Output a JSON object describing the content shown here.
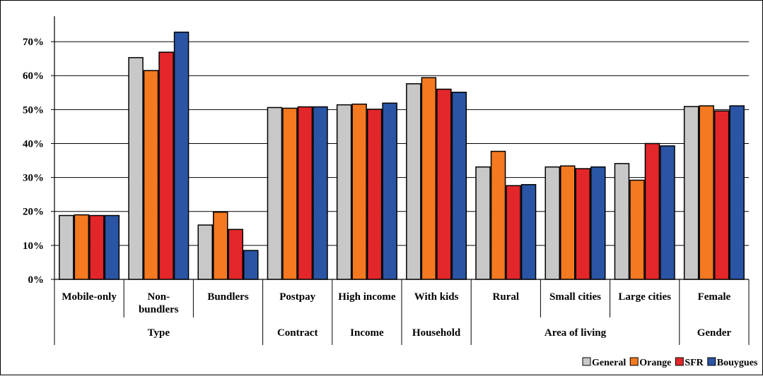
{
  "chart_data": {
    "type": "bar",
    "title": "",
    "xlabel": "",
    "ylabel": "",
    "ylim": [
      0,
      0.75
    ],
    "y_ticks": [
      0,
      0.1,
      0.2,
      0.3,
      0.4,
      0.5,
      0.6,
      0.7
    ],
    "y_tick_labels": [
      "0%",
      "10%",
      "20%",
      "30%",
      "40%",
      "50%",
      "60%",
      "70%"
    ],
    "grid": true,
    "legend_position": "bottom-right",
    "categories": [
      "Mobile-only",
      "Non-\nbundlers",
      "Bundlers",
      "Postpay",
      "High income",
      "With kids",
      "Rural",
      "Small cities",
      "Large cities",
      "Female"
    ],
    "groups": [
      {
        "label": "Type",
        "span": 3
      },
      {
        "label": "Contract",
        "span": 1
      },
      {
        "label": "Income",
        "span": 1
      },
      {
        "label": "Household",
        "span": 1
      },
      {
        "label": "Area of living",
        "span": 3
      },
      {
        "label": "Gender",
        "span": 1
      }
    ],
    "series": [
      {
        "name": "General",
        "color": "#c8c8c8",
        "values": [
          0.188,
          0.653,
          0.16,
          0.506,
          0.514,
          0.576,
          0.331,
          0.331,
          0.341,
          0.509
        ]
      },
      {
        "name": "Orange",
        "color": "#f47920",
        "values": [
          0.19,
          0.615,
          0.198,
          0.504,
          0.516,
          0.594,
          0.377,
          0.334,
          0.292,
          0.511
        ]
      },
      {
        "name": "SFR",
        "color": "#e3262a",
        "values": [
          0.188,
          0.669,
          0.147,
          0.508,
          0.501,
          0.56,
          0.276,
          0.326,
          0.4,
          0.496
        ]
      },
      {
        "name": "Bouygues",
        "color": "#2a55a5",
        "values": [
          0.188,
          0.728,
          0.085,
          0.508,
          0.519,
          0.551,
          0.279,
          0.331,
          0.393,
          0.511
        ]
      }
    ]
  }
}
